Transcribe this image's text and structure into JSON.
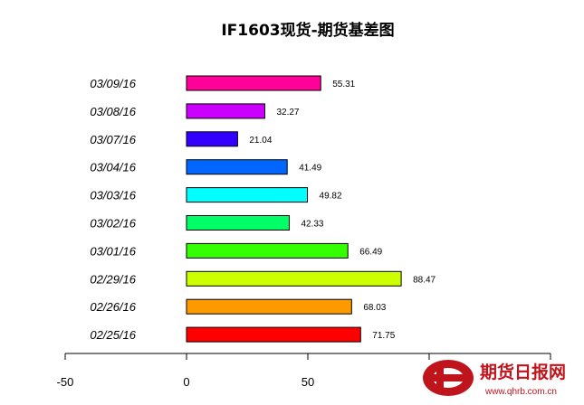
{
  "chart_data": {
    "type": "bar",
    "orientation": "horizontal",
    "title": "IF1603现货-期货基差图",
    "categories": [
      "03/09/16",
      "03/08/16",
      "03/07/16",
      "03/04/16",
      "03/03/16",
      "03/02/16",
      "03/01/16",
      "02/29/16",
      "02/26/16",
      "02/25/16"
    ],
    "values": [
      55.31,
      32.27,
      21.04,
      41.49,
      49.82,
      42.33,
      66.49,
      88.47,
      68.03,
      71.75
    ],
    "value_labels": [
      "55.31",
      "32.27",
      "21.04",
      "41.49",
      "49.82",
      "42.33",
      "66.49",
      "88.47",
      "68.03",
      "71.75"
    ],
    "colors": [
      "#ff0099",
      "#cc00ff",
      "#3300ff",
      "#0066ff",
      "#00ffff",
      "#00ff66",
      "#33ff00",
      "#ccff00",
      "#ff9900",
      "#ff0000"
    ],
    "xlim": [
      -50,
      150
    ],
    "x_ticks": [
      -50,
      0,
      50,
      100,
      150
    ],
    "x_tick_labels": [
      "-50",
      "0",
      "50",
      "",
      ""
    ],
    "grid": false,
    "legend": "none"
  },
  "watermark": {
    "text": "期货日报网",
    "url": "www.qhrb.com.cn",
    "color": "#c0141c"
  }
}
